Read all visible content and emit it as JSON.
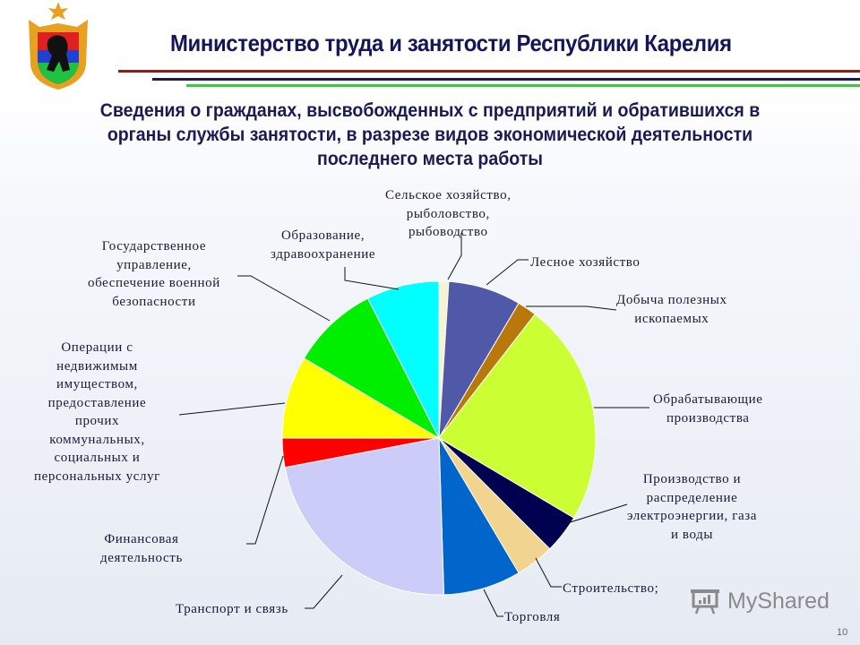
{
  "header": {
    "title": "Министерство труда и занятости Республики Карелия",
    "logo": "karelia-coat-of-arms-icon"
  },
  "subtitle": {
    "line1": "Сведения о гражданах, высвобожденных с предприятий и обратившихся в",
    "line2": "органы службы занятости, в разрезе видов экономической деятельности",
    "line3": "последнего места работы"
  },
  "labels": {
    "agriculture": [
      "Сельское хозяйство,",
      "рыболовство,",
      "рыбоводство"
    ],
    "forestry": [
      "Лесное хозяйство"
    ],
    "mining": [
      "Добыча полезных",
      "ископаемых"
    ],
    "manufacturing": [
      "Обрабатывающие",
      "производства"
    ],
    "utilities": [
      "Производство и",
      "распределение",
      "электроэнергии, газа",
      "и воды"
    ],
    "construction": [
      "Строительство;"
    ],
    "trade": [
      "Торговля"
    ],
    "transport": [
      "Транспорт и связь"
    ],
    "finance": [
      "Финансовая",
      "деятельность"
    ],
    "real_estate": [
      "Операции с",
      "недвижимым",
      "имуществом,",
      "предоставление",
      "прочих",
      "коммунальных,",
      "социальных и",
      "персональных услуг"
    ],
    "government": [
      "Государственное",
      "управление,",
      "обеспечение военной",
      "безопасности"
    ],
    "education": [
      "Образование,",
      "здравоохранение"
    ]
  },
  "chart_data": {
    "type": "pie",
    "title": "Сведения о гражданах, высвобожденных с предприятий и обратившихся в органы службы занятости, в разрезе видов экономической деятельности последнего места работы",
    "categories": [
      "Сельское хозяйство, рыболовство, рыбоводство",
      "Лесное хозяйство",
      "Добыча полезных ископаемых",
      "Обрабатывающие производства",
      "Производство и распределение электроэнергии, газа и воды",
      "Строительство",
      "Торговля",
      "Транспорт и связь",
      "Финансовая деятельность",
      "Операции с недвижимым имуществом, предоставление прочих коммунальных, социальных и персональных услуг",
      "Государственное управление, обеспечение военной безопасности",
      "Образование, здравоохранение"
    ],
    "values": [
      1.0,
      7.5,
      2.0,
      23.0,
      4.0,
      4.0,
      8.0,
      22.5,
      3.0,
      8.5,
      9.0,
      7.5
    ],
    "colors": [
      "#f5f3d0",
      "#5058a8",
      "#b8780a",
      "#ccff33",
      "#000050",
      "#f0d490",
      "#0066cc",
      "#ccccf8",
      "#ff0000",
      "#ffff00",
      "#00ee00",
      "#00ffff"
    ],
    "start_angle_deg": 0,
    "direction": "clockwise",
    "legend": "none (leader-line labels)",
    "units": "approx. share, %"
  },
  "watermark": {
    "text": "MyShared",
    "icon": "presentation-board-icon"
  },
  "page_number": "10"
}
